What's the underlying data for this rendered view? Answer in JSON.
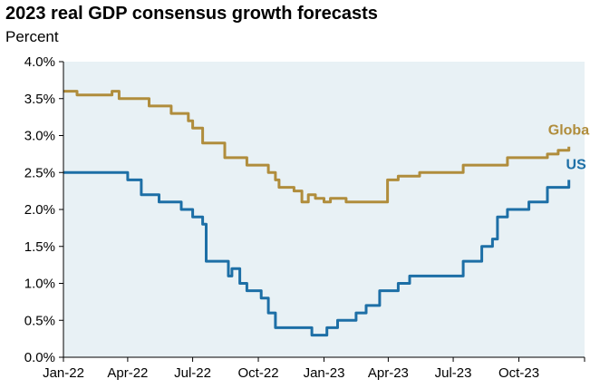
{
  "chart_data": {
    "type": "line",
    "title": "2023 real GDP consensus growth forecasts",
    "subtitle": "Percent",
    "ylim": [
      0,
      4.0
    ],
    "xlim": [
      "2022-01-01",
      "2024-01-01"
    ],
    "y_ticks": [
      "0.0%",
      "0.5%",
      "1.0%",
      "1.5%",
      "2.0%",
      "2.5%",
      "3.0%",
      "3.5%",
      "4.0%"
    ],
    "x_ticks": [
      "Jan-22",
      "Apr-22",
      "Jul-22",
      "Oct-22",
      "Jan-23",
      "Apr-23",
      "Jul-23",
      "Oct-23"
    ],
    "grid": false,
    "series": [
      {
        "name": "Global",
        "color": "#b08d3c",
        "x": [
          "2022-01-01",
          "2022-01-10",
          "2022-01-20",
          "2022-02-15",
          "2022-03-10",
          "2022-03-20",
          "2022-05-01",
          "2022-06-01",
          "2022-06-25",
          "2022-07-01",
          "2022-07-15",
          "2022-08-15",
          "2022-09-15",
          "2022-10-15",
          "2022-10-25",
          "2022-10-30",
          "2022-11-20",
          "2022-12-01",
          "2022-12-10",
          "2022-12-20",
          "2023-01-01",
          "2023-01-10",
          "2023-02-01",
          "2023-02-15",
          "2023-03-31",
          "2023-04-15",
          "2023-05-15",
          "2023-07-15",
          "2023-08-15",
          "2023-09-15",
          "2023-11-10",
          "2023-11-25",
          "2023-12-10"
        ],
        "y": [
          3.6,
          3.6,
          3.55,
          3.55,
          3.6,
          3.5,
          3.4,
          3.3,
          3.2,
          3.1,
          2.9,
          2.7,
          2.6,
          2.5,
          2.4,
          2.3,
          2.25,
          2.1,
          2.2,
          2.15,
          2.1,
          2.15,
          2.1,
          2.1,
          2.4,
          2.45,
          2.5,
          2.6,
          2.6,
          2.7,
          2.75,
          2.8,
          2.85
        ]
      },
      {
        "name": "US",
        "color": "#1d6fa6",
        "x": [
          "2022-01-01",
          "2022-03-20",
          "2022-04-01",
          "2022-04-20",
          "2022-05-15",
          "2022-06-15",
          "2022-07-01",
          "2022-07-15",
          "2022-07-20",
          "2022-08-15",
          "2022-08-20",
          "2022-08-25",
          "2022-09-05",
          "2022-09-15",
          "2022-10-05",
          "2022-10-15",
          "2022-10-25",
          "2022-11-01",
          "2022-12-01",
          "2022-12-15",
          "2023-01-05",
          "2023-01-20",
          "2023-02-15",
          "2023-03-01",
          "2023-03-20",
          "2023-04-15",
          "2023-05-01",
          "2023-06-01",
          "2023-07-15",
          "2023-08-10",
          "2023-08-25",
          "2023-09-01",
          "2023-09-15",
          "2023-10-15",
          "2023-11-10",
          "2023-12-01",
          "2023-12-10"
        ],
        "y": [
          2.5,
          2.5,
          2.4,
          2.2,
          2.1,
          2.0,
          1.9,
          1.8,
          1.3,
          1.3,
          1.1,
          1.2,
          1.0,
          0.9,
          0.8,
          0.6,
          0.4,
          0.4,
          0.4,
          0.3,
          0.4,
          0.5,
          0.6,
          0.7,
          0.9,
          1.0,
          1.1,
          1.1,
          1.3,
          1.5,
          1.6,
          1.9,
          2.0,
          2.1,
          2.3,
          2.3,
          2.4
        ]
      }
    ]
  }
}
